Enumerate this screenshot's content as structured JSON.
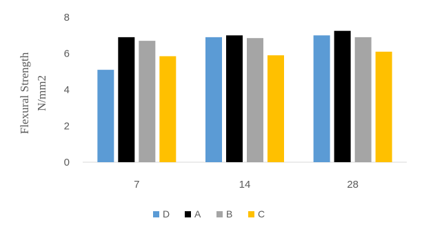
{
  "chart_data": {
    "type": "bar",
    "categories": [
      "7",
      "14",
      "28"
    ],
    "series": [
      {
        "name": "D",
        "values": [
          5.1,
          6.9,
          7.0
        ],
        "color": "#5B9BD5"
      },
      {
        "name": "A",
        "values": [
          6.9,
          7.0,
          7.25
        ],
        "color": "#000000"
      },
      {
        "name": "B",
        "values": [
          6.7,
          6.85,
          6.9
        ],
        "color": "#A5A5A5"
      },
      {
        "name": "C",
        "values": [
          5.85,
          5.9,
          6.1
        ],
        "color": "#FFC000"
      }
    ],
    "ylabel_line1": "Flexural  Strength",
    "ylabel_line2": "N/mm2",
    "ylim": [
      0,
      8
    ],
    "yticks": [
      "0",
      "2",
      "4",
      "6",
      "8"
    ],
    "grid": false,
    "legend": "bottom"
  }
}
